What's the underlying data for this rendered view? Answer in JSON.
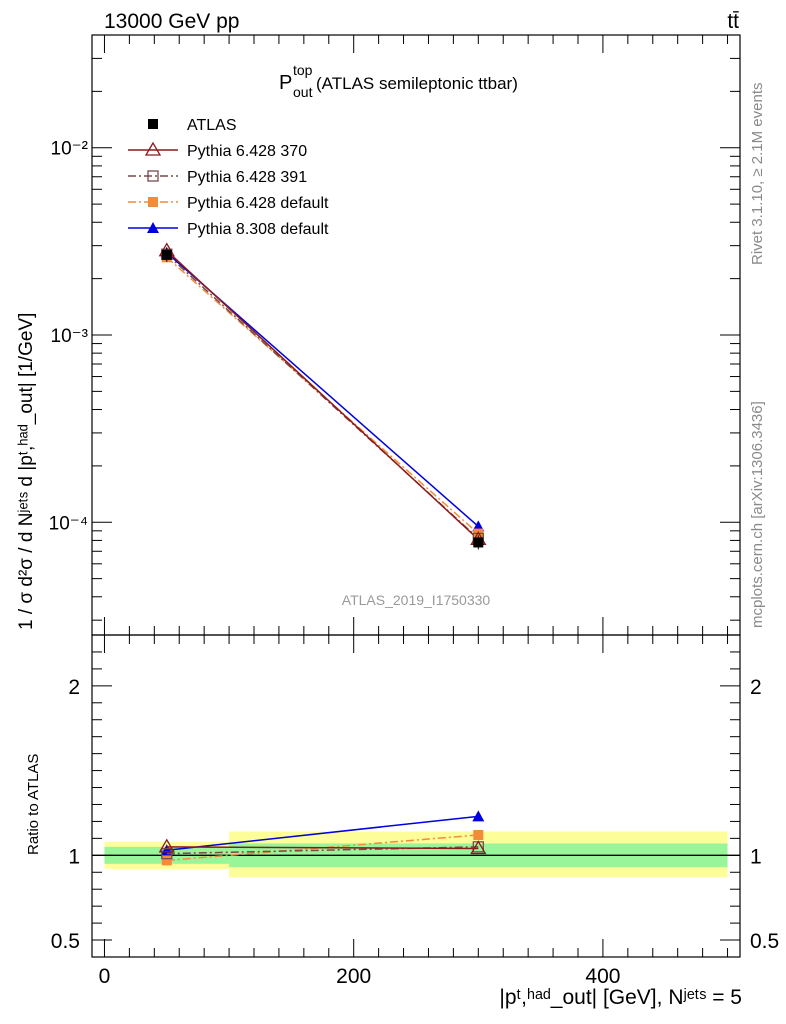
{
  "header": {
    "energy": "13000 GeV pp",
    "process": "tt̄"
  },
  "side_labels": {
    "rivet": "Rivet 3.1.10, ≥ 2.1M events",
    "source": "mcplots.cern.ch [arXiv:1306.3436]"
  },
  "watermark": "ATLAS_2019_I1750330",
  "title": {
    "main": "P",
    "sup": "top",
    "sub": "out",
    "rest": " (ATLAS semileptonic ttbar)"
  },
  "ylabel_top": "1 / σ d²σ / d Nʲᵉᵗˢ d |pᵗ,ʰᵃᵈ_out| [1/GeV]",
  "ylabel_bottom": "Ratio to ATLAS",
  "xlabel": "|pᵗ,ʰᵃᵈ_out| [GeV], Nʲᵉᵗˢ = 5",
  "chart_data": {
    "type": "line",
    "x": [
      50,
      300
    ],
    "x_bins": [
      [
        0,
        100
      ],
      [
        100,
        500
      ]
    ],
    "xlim": [
      -10,
      510
    ],
    "xticks": [
      0,
      200,
      400
    ],
    "ylim": [
      2.5e-05,
      0.04
    ],
    "yscale": "log",
    "ytick_labels": [
      "10⁻²",
      "10⁻³",
      "10⁻⁴"
    ],
    "ratio_ylim": [
      0.4,
      2.3
    ],
    "ratio_yticks": [
      0.5,
      1,
      2
    ],
    "legend_position": "top-left",
    "series": [
      {
        "name": "ATLAS",
        "values": [
          0.00268,
          7.8e-05
        ],
        "ratio": [
          1.0,
          1.0
        ],
        "color": "#000000",
        "marker": "square"
      },
      {
        "name": "Pythia 6.428 370",
        "values": [
          0.00282,
          8.1e-05
        ],
        "ratio": [
          1.05,
          1.04
        ],
        "color": "#8b1a1a",
        "marker": "triangle-open",
        "dash": "solid"
      },
      {
        "name": "Pythia 6.428 391",
        "values": [
          0.0027,
          8.2e-05
        ],
        "ratio": [
          1.01,
          1.05
        ],
        "color": "#7a4a4a",
        "marker": "square-open",
        "dash": "dashdot"
      },
      {
        "name": "Pythia 6.428 default",
        "values": [
          0.0026,
          8.7e-05
        ],
        "ratio": [
          0.97,
          1.12
        ],
        "color": "#f28c38",
        "marker": "square",
        "dash": "dashdot"
      },
      {
        "name": "Pythia 8.308 default",
        "values": [
          0.00275,
          9.5e-05
        ],
        "ratio": [
          1.03,
          1.23
        ],
        "color": "#0000dd",
        "marker": "triangle",
        "dash": "solid"
      }
    ],
    "data_bands": {
      "inner": [
        [
          0.95,
          1.05
        ],
        [
          0.93,
          1.07
        ]
      ],
      "outer": [
        [
          0.92,
          1.08
        ],
        [
          0.87,
          1.14
        ]
      ],
      "inner_color": "#99f599",
      "outer_color": "#fdfd99"
    }
  }
}
